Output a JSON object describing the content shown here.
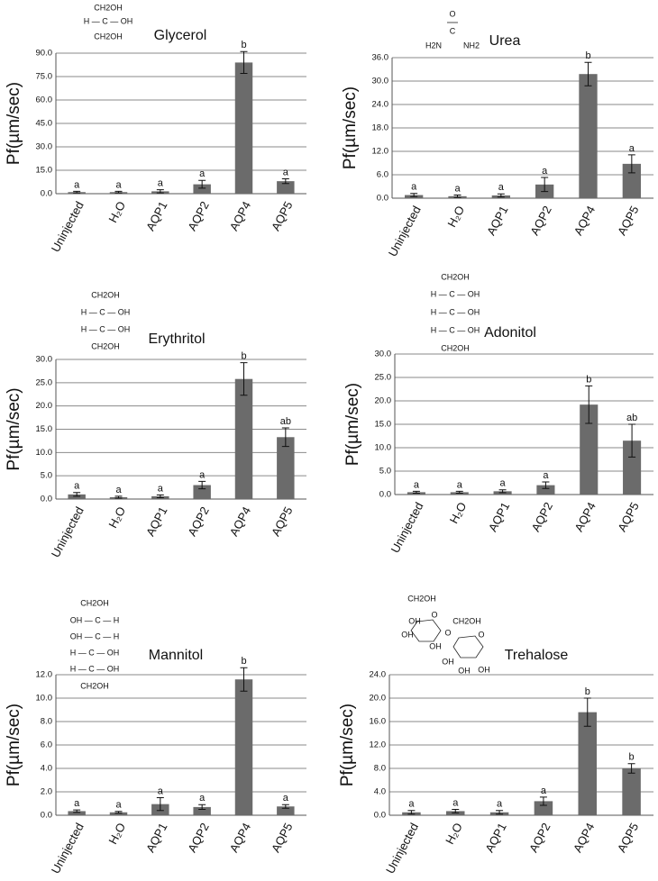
{
  "chart_data": [
    {
      "type": "bar",
      "title": "Glycerol",
      "ylabel": "Pf(µm/sec)",
      "structure": [
        "CH2OH",
        "H — C — OH",
        "CH2OH"
      ],
      "categories": [
        "Uninjected",
        "H₂O",
        "AQP1",
        "AQP2",
        "AQP4",
        "AQP5"
      ],
      "values": [
        1,
        1,
        1.5,
        6,
        84,
        8
      ],
      "errors": [
        0.5,
        0.5,
        1,
        2.5,
        7,
        1.5
      ],
      "letters": [
        "a",
        "a",
        "a",
        "a",
        "b",
        "a"
      ],
      "color": "#6b6b6b",
      "grid": true,
      "ylim": [
        0,
        90
      ],
      "yticks": [
        {
          "value": 0,
          "label": "0.0"
        },
        {
          "value": 15,
          "label": "15.0"
        },
        {
          "value": 30,
          "label": "30.0"
        },
        {
          "value": 45,
          "label": "45.0"
        },
        {
          "value": 60,
          "label": "60.0"
        },
        {
          "value": 75,
          "label": "75.0"
        },
        {
          "value": 90,
          "label": "90.0"
        }
      ]
    },
    {
      "type": "bar",
      "title": "Urea",
      "ylabel": "Pf(µm/sec)",
      "structure": [
        "O",
        "C",
        "H2N",
        "NH2"
      ],
      "categories": [
        "Uninjected",
        "H₂O",
        "AQP1",
        "AQP2",
        "AQP4",
        "AQP5"
      ],
      "values": [
        0.8,
        0.5,
        0.7,
        3.5,
        31.8,
        8.8
      ],
      "errors": [
        0.4,
        0.3,
        0.4,
        1.8,
        3,
        2.3
      ],
      "letters": [
        "a",
        "a",
        "a",
        "a",
        "b",
        "a"
      ],
      "color": "#6b6b6b",
      "grid": true,
      "ylim": [
        0,
        36
      ],
      "yticks": [
        {
          "value": 0,
          "label": "0.0"
        },
        {
          "value": 6,
          "label": "6.0"
        },
        {
          "value": 12,
          "label": "12.0"
        },
        {
          "value": 18,
          "label": "18.0"
        },
        {
          "value": 24,
          "label": "24.0"
        },
        {
          "value": 30,
          "label": "30.0"
        },
        {
          "value": 36,
          "label": "36.0"
        }
      ]
    },
    {
      "type": "bar",
      "title": "Erythritol",
      "ylabel": "Pf(µm/sec)",
      "structure": [
        "CH2OH",
        "H — C — OH",
        "H — C — OH",
        "CH2OH"
      ],
      "categories": [
        "Uninjected",
        "H₂O",
        "AQP1",
        "AQP2",
        "AQP4",
        "AQP5"
      ],
      "values": [
        1.0,
        0.4,
        0.6,
        3.0,
        25.8,
        13.3
      ],
      "errors": [
        0.4,
        0.2,
        0.3,
        0.8,
        3.5,
        2.0
      ],
      "letters": [
        "a",
        "a",
        "a",
        "a",
        "b",
        "ab"
      ],
      "color": "#6b6b6b",
      "grid": true,
      "ylim": [
        0,
        30
      ],
      "yticks": [
        {
          "value": 0,
          "label": "0.0"
        },
        {
          "value": 5,
          "label": "5.0"
        },
        {
          "value": 10,
          "label": "10.0"
        },
        {
          "value": 15,
          "label": "15.0"
        },
        {
          "value": 20,
          "label": "20.0"
        },
        {
          "value": 25,
          "label": "25.0"
        },
        {
          "value": 30,
          "label": "30.0"
        }
      ]
    },
    {
      "type": "bar",
      "title": "Adonitol",
      "ylabel": "Pf(µm/sec)",
      "structure": [
        "CH2OH",
        "H — C — OH",
        "H — C — OH",
        "H — C — OH",
        "CH2OH"
      ],
      "categories": [
        "Uninjected",
        "H₂O",
        "AQP1",
        "AQP2",
        "AQP4",
        "AQP5"
      ],
      "values": [
        0.5,
        0.5,
        0.7,
        2.0,
        19.2,
        11.5
      ],
      "errors": [
        0.2,
        0.2,
        0.3,
        0.7,
        4,
        3.5
      ],
      "letters": [
        "a",
        "a",
        "a",
        "a",
        "b",
        "ab"
      ],
      "color": "#6b6b6b",
      "grid": true,
      "ylim": [
        0,
        30
      ],
      "yticks": [
        {
          "value": 0,
          "label": "0.0"
        },
        {
          "value": 5,
          "label": "5.0"
        },
        {
          "value": 10,
          "label": "10.0"
        },
        {
          "value": 15,
          "label": "15.0"
        },
        {
          "value": 20,
          "label": "20.0"
        },
        {
          "value": 25,
          "label": "25.0"
        },
        {
          "value": 30,
          "label": "30.0"
        }
      ]
    },
    {
      "type": "bar",
      "title": "Mannitol",
      "ylabel": "Pf(µm/sec)",
      "structure": [
        "CH2OH",
        "OH — C — H",
        "OH — C — H",
        "H — C — OH",
        "H — C — OH",
        "CH2OH"
      ],
      "categories": [
        "Uninjected",
        "H₂O",
        "AQP1",
        "AQP2",
        "AQP4",
        "AQP5"
      ],
      "values": [
        0.35,
        0.25,
        0.95,
        0.7,
        11.6,
        0.75
      ],
      "errors": [
        0.1,
        0.08,
        0.55,
        0.2,
        1.0,
        0.15
      ],
      "letters": [
        "a",
        "a",
        "a",
        "a",
        "b",
        "a"
      ],
      "color": "#6b6b6b",
      "grid": true,
      "ylim": [
        0,
        12
      ],
      "yticks": [
        {
          "value": 0,
          "label": "0.0"
        },
        {
          "value": 2,
          "label": "2.0"
        },
        {
          "value": 4,
          "label": "4.0"
        },
        {
          "value": 6,
          "label": "6.0"
        },
        {
          "value": 8,
          "label": "8.0"
        },
        {
          "value": 10,
          "label": "10.0"
        },
        {
          "value": 12,
          "label": "12.0"
        }
      ]
    },
    {
      "type": "bar",
      "title": "Trehalose",
      "ylabel": "Pf(µm/sec)",
      "structure": [
        "CH2OH",
        "O",
        "OH",
        "OH",
        "OH",
        "O",
        "CH2OH",
        "O",
        "OH",
        "OH",
        "OH"
      ],
      "categories": [
        "Uninjected",
        "H₂O",
        "AQP1",
        "AQP2",
        "AQP4",
        "AQP5"
      ],
      "values": [
        0.5,
        0.7,
        0.5,
        2.4,
        17.6,
        8.0
      ],
      "errors": [
        0.3,
        0.3,
        0.3,
        0.7,
        2.4,
        0.8
      ],
      "letters": [
        "a",
        "a",
        "a",
        "a",
        "b",
        "b"
      ],
      "color": "#6b6b6b",
      "grid": true,
      "ylim": [
        0,
        24
      ],
      "yticks": [
        {
          "value": 0,
          "label": "0.0"
        },
        {
          "value": 4,
          "label": "4.0"
        },
        {
          "value": 8,
          "label": "8.0"
        },
        {
          "value": 12,
          "label": "12.0"
        },
        {
          "value": 16,
          "label": "16.0"
        },
        {
          "value": 20,
          "label": "20.0"
        },
        {
          "value": 24,
          "label": "24.0"
        }
      ]
    }
  ]
}
